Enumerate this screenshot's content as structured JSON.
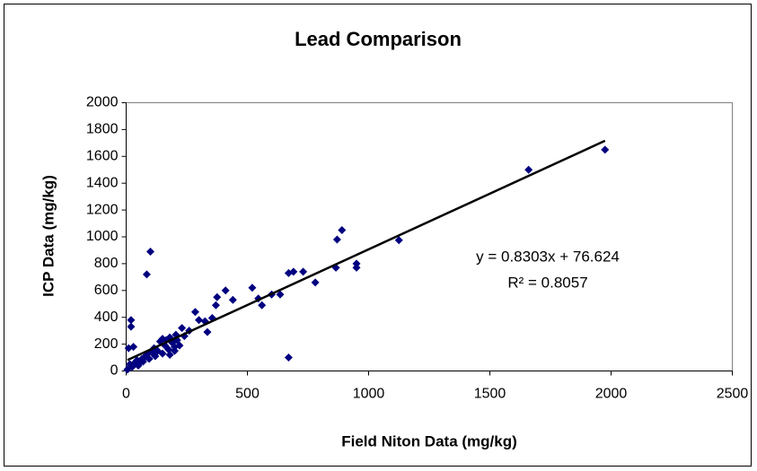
{
  "chart_data": {
    "type": "scatter",
    "title": "Lead Comparison",
    "x_label": "Field Niton Data (mg/kg)",
    "y_label": "ICP Data (mg/kg)",
    "xlim": [
      0,
      2500
    ],
    "xticks": [
      0,
      500,
      1000,
      1500,
      2000,
      2500
    ],
    "ylim": [
      0,
      2000
    ],
    "yticks": [
      0,
      200,
      400,
      600,
      800,
      1000,
      1200,
      1400,
      1600,
      1800,
      2000
    ],
    "grid": false,
    "series": [
      {
        "color": "#000080",
        "x": [
          1975,
          1660,
          1125,
          890,
          870,
          865,
          950,
          950,
          780,
          730,
          690,
          670,
          670,
          635,
          600,
          560,
          545,
          520,
          440,
          410,
          375,
          370,
          355,
          335,
          325,
          300,
          285,
          230,
          205,
          180,
          165,
          140,
          115,
          100,
          85,
          20,
          20,
          10,
          15,
          25,
          35,
          45,
          55,
          65,
          75,
          85,
          95,
          105,
          120,
          130,
          150,
          160,
          175,
          190,
          200,
          210,
          220,
          240,
          30,
          10,
          5,
          50,
          70,
          150,
          180,
          200,
          260
        ],
        "values": [
          1650,
          1500,
          975,
          1050,
          980,
          770,
          800,
          770,
          660,
          740,
          740,
          730,
          100,
          570,
          570,
          490,
          540,
          620,
          530,
          600,
          550,
          490,
          395,
          290,
          370,
          380,
          440,
          320,
          270,
          250,
          230,
          220,
          170,
          890,
          720,
          380,
          330,
          170,
          50,
          30,
          60,
          80,
          60,
          90,
          100,
          120,
          90,
          140,
          110,
          150,
          130,
          190,
          160,
          210,
          150,
          230,
          190,
          260,
          180,
          20,
          10,
          40,
          70,
          240,
          120,
          180,
          300
        ]
      }
    ],
    "trendline": {
      "slope": 0.8303,
      "intercept": 76.624,
      "equation": "y = 0.8303x + 76.624",
      "r_squared": 0.8057,
      "r_squared_label": "R² = 0.8057",
      "color": "#000000"
    }
  }
}
